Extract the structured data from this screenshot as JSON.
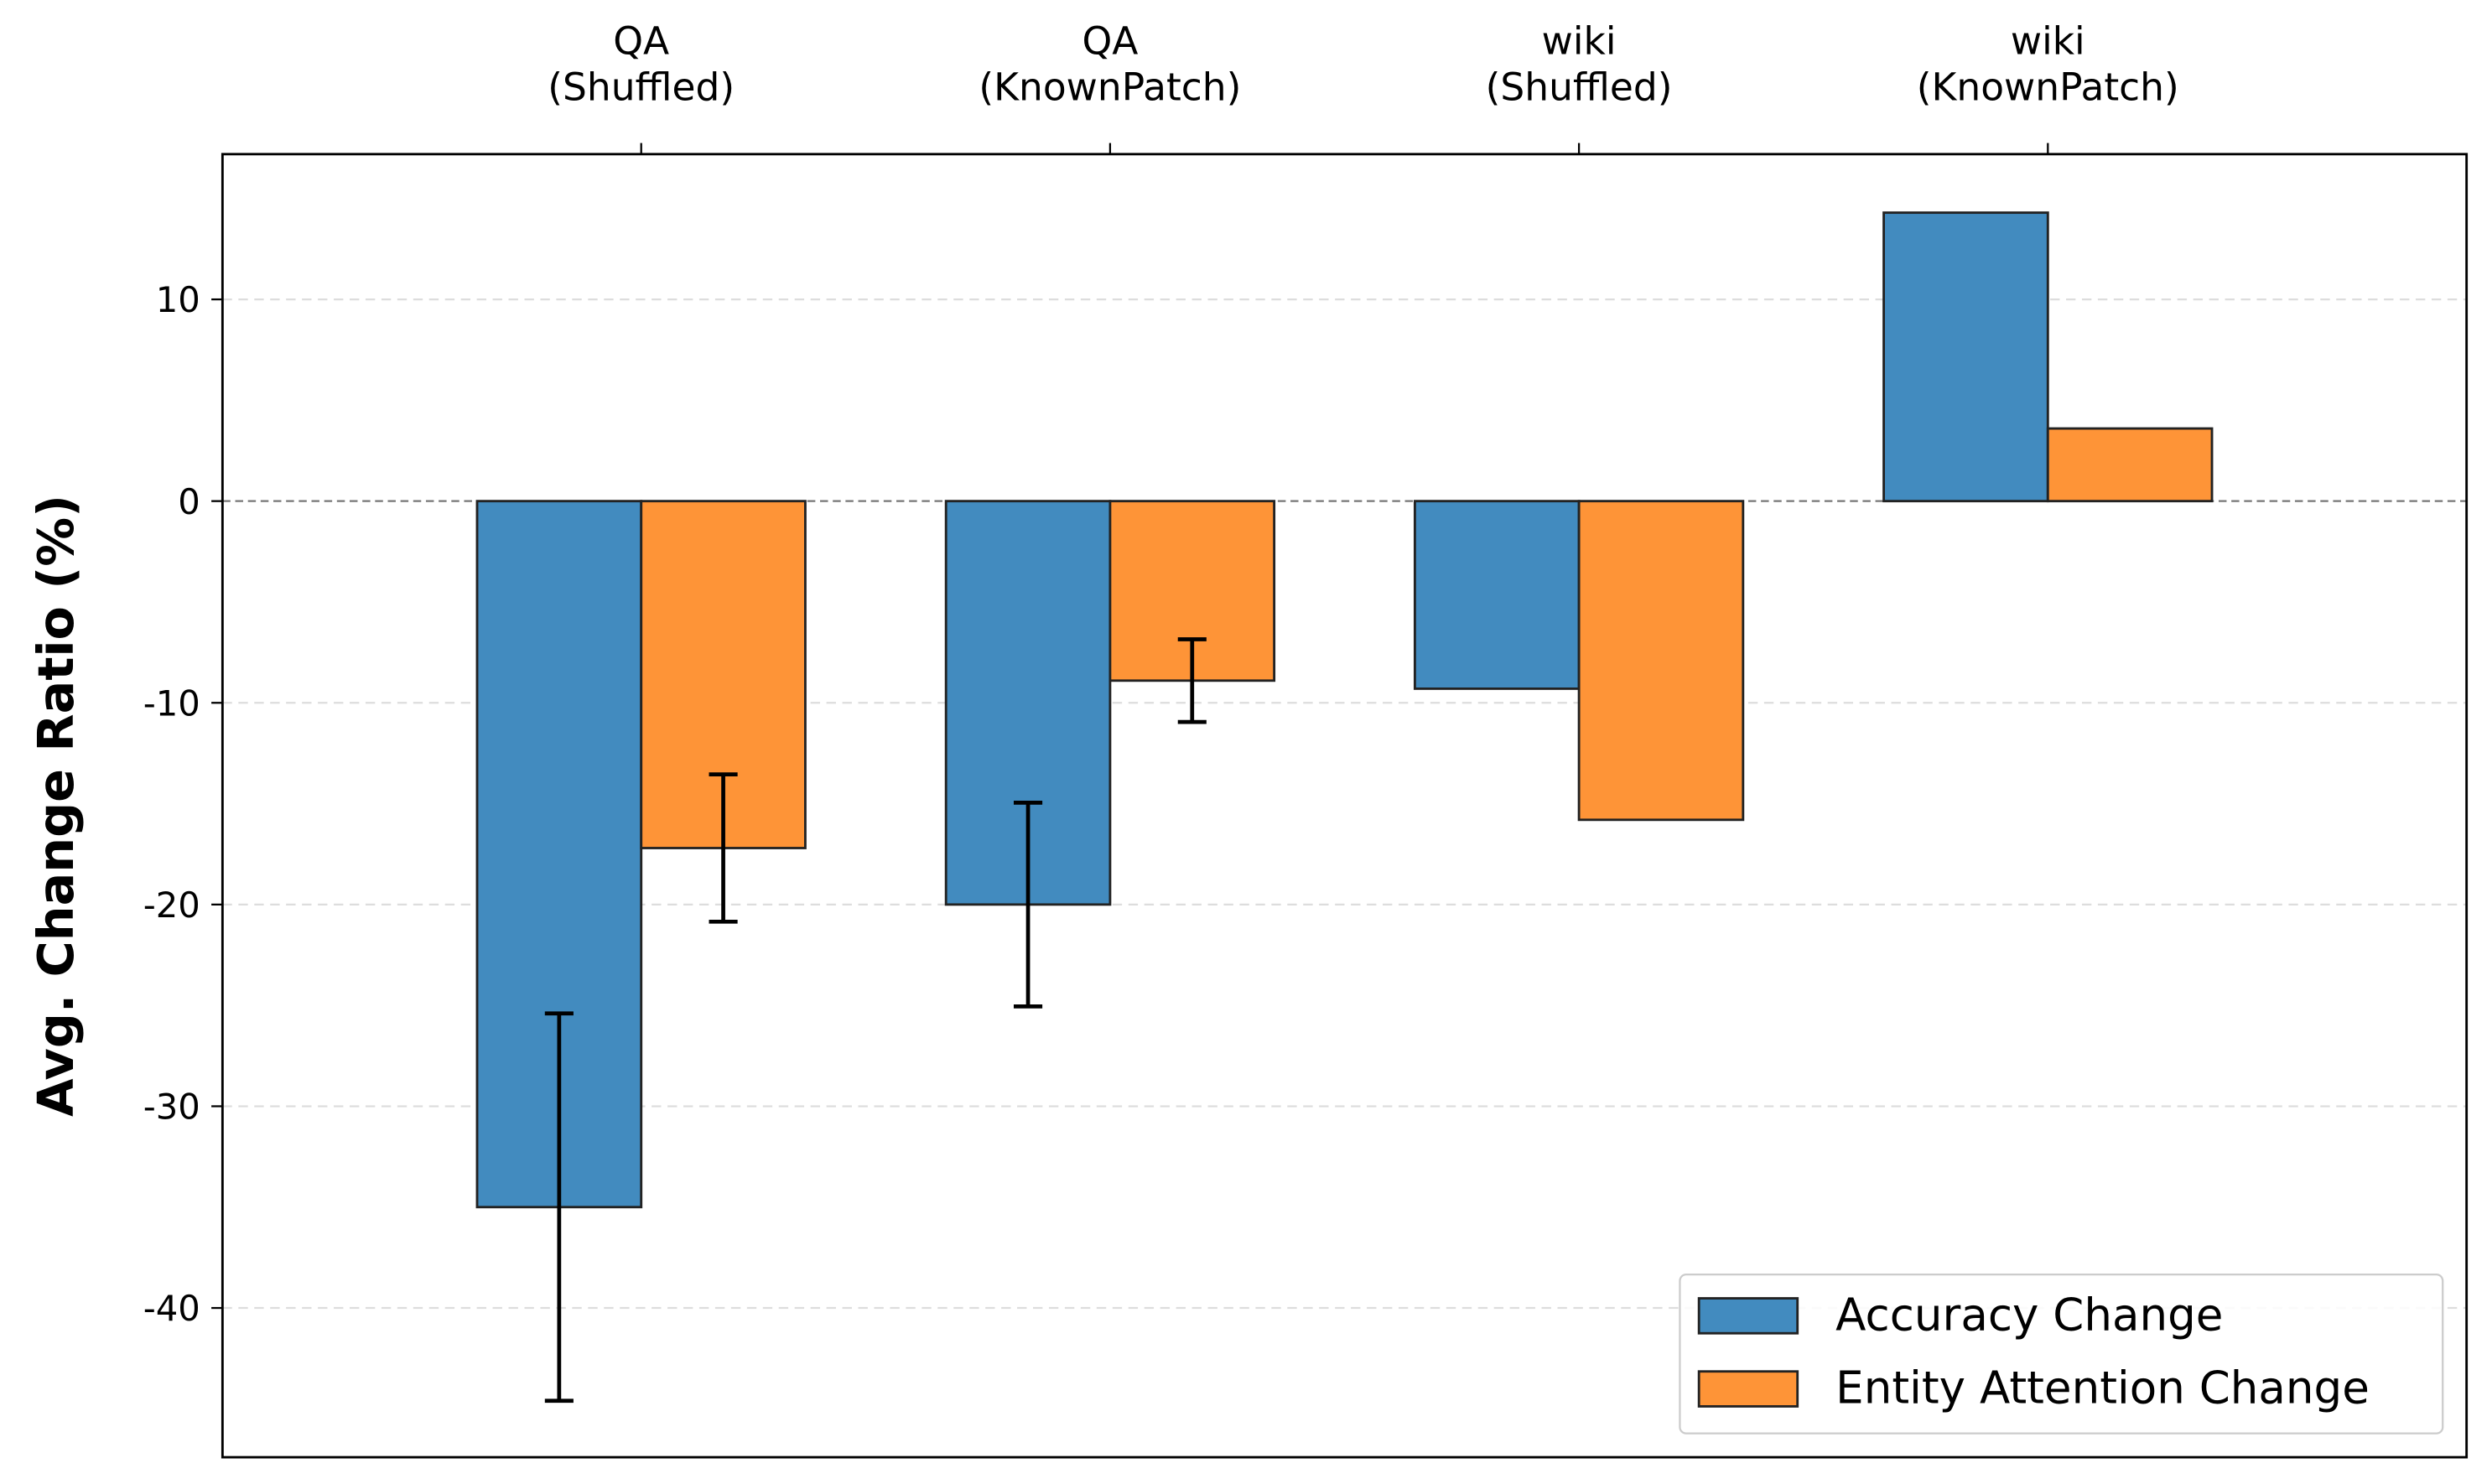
{
  "chart_data": {
    "type": "bar",
    "ylabel": "Avg. Change Ratio (%)",
    "categories": [
      "QA\n(Shuffled)",
      "QA\n(KnownPatch)",
      "wiki\n(Shuffled)",
      "wiki\n(KnownPatch)"
    ],
    "series": [
      {
        "name": "Accuracy Change",
        "color": "#428bbf",
        "values": [
          -35,
          -20,
          -9.3,
          14.3
        ],
        "errors": [
          9.6,
          5.05,
          null,
          null
        ]
      },
      {
        "name": "Entity Attention Change",
        "color": "#fe9437",
        "values": [
          -17.2,
          -8.9,
          -15.8,
          3.6
        ],
        "errors": [
          3.65,
          2.05,
          null,
          null
        ]
      }
    ],
    "ylim": [
      -47.4,
      17.2
    ],
    "yticks": [
      -40,
      -30,
      -20,
      -10,
      0,
      10
    ],
    "grid": true,
    "legend": "lower right"
  }
}
